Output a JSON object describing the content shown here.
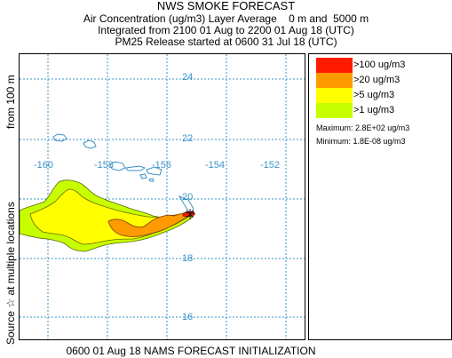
{
  "header": {
    "title": "NWS SMOKE FORECAST",
    "line2": "Air Concentration (ug/m3) Layer Average    0 m and  5000 m",
    "line3": "Integrated from 2100 01 Aug to 2200 01 Aug 18 (UTC)",
    "line4": "PM25 Release started at 0600 31 Jul 18 (UTC)"
  },
  "side_label": {
    "top": "from   100 m",
    "bottom": "Source ☆  at multiple locations"
  },
  "map": {
    "longitudes": [
      "-160",
      "-158",
      "-156",
      "-154",
      "-152"
    ],
    "latitudes": [
      "24",
      "22",
      "20",
      "18",
      "16"
    ],
    "grid_color": "#3a93c7"
  },
  "legend": {
    "items": [
      {
        "label": ">100 ug/m3",
        "color": "#ff1a00"
      },
      {
        "label": ">20 ug/m3",
        "color": "#ff9a00"
      },
      {
        "label": ">5 ug/m3",
        "color": "#ffff00"
      },
      {
        "label": ">1 ug/m3",
        "color": "#c8ff00"
      }
    ],
    "maximum": "Maximum: 2.8E+02 ug/m3",
    "minimum": "Minimum: 1.8E-08 ug/m3"
  },
  "footer": "0600 01 Aug 18 NAMS FORECAST INITIALIZATION"
}
